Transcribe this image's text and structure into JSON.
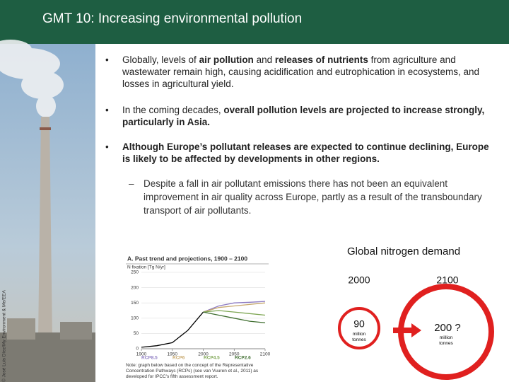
{
  "header": {
    "title": "GMT 10:  Increasing environmental pollution"
  },
  "photo_credit": "© José Luis Díez/My Environment & Me/EEA",
  "bullets": [
    {
      "parts": [
        {
          "text": "Globally, levels of ",
          "bold": false
        },
        {
          "text": "air pollution",
          "bold": true
        },
        {
          "text": " and ",
          "bold": false
        },
        {
          "text": "releases of nutrients",
          "bold": true
        },
        {
          "text": " from agriculture and wastewater remain high, causing acidification and eutrophication in ecosystems, and losses in agricultural yield.",
          "bold": false
        }
      ]
    },
    {
      "parts": [
        {
          "text": "In the coming decades, ",
          "bold": false
        },
        {
          "text": "overall pollution levels are projected to increase strongly, particularly in Asia.",
          "bold": true
        }
      ]
    },
    {
      "parts": [
        {
          "text": "Although Europe’s pollutant releases are expected to continue declining, Europe is likely to be affected by developments in other regions.",
          "bold": true
        }
      ]
    }
  ],
  "sub_bullet": "Despite a fall in air pollutant emissions there has not been an equivalent improvement in air quality across Europe, partly as a result of the transboundary transport of air pollutants.",
  "figure": {
    "type": "line",
    "title": "A. Past trend and projections, 1900 – 2100",
    "ylabel": "N fixation [Tg N/yr]",
    "xlim": [
      1900,
      2100
    ],
    "xticks": [
      1900,
      1950,
      2000,
      2050,
      2100
    ],
    "ylim": [
      0,
      250
    ],
    "yticks": [
      0,
      50,
      100,
      150,
      200,
      250
    ],
    "history": {
      "color": "#000000",
      "x": [
        1900,
        1925,
        1950,
        1975,
        2000
      ],
      "values": [
        5,
        10,
        20,
        60,
        120
      ]
    },
    "x": [
      2000,
      2025,
      2050,
      2075,
      2100
    ],
    "series": [
      {
        "name": "RCP8.5",
        "color": "#8e7cc3",
        "values": [
          120,
          140,
          150,
          152,
          155
        ]
      },
      {
        "name": "RCP6",
        "color": "#c8a96e",
        "values": [
          120,
          135,
          140,
          145,
          150
        ]
      },
      {
        "name": "RCP4.5",
        "color": "#7ea653",
        "values": [
          120,
          125,
          120,
          115,
          110
        ]
      },
      {
        "name": "RCP2.6",
        "color": "#3f6e30",
        "values": [
          120,
          110,
          100,
          90,
          85
        ]
      }
    ],
    "note": "Note: graph below based on the concept of the Representative Concentration Pathways (RCPs) (see van Vuuren et al., 2011) as developed for IPCC's fifth assessment report."
  },
  "nitrogen": {
    "title": "Global nitrogen demand",
    "years": [
      "2000",
      "2100"
    ],
    "amounts": [
      "90",
      "200 ?"
    ],
    "units": [
      "million tonnes",
      "million tonnes"
    ]
  }
}
